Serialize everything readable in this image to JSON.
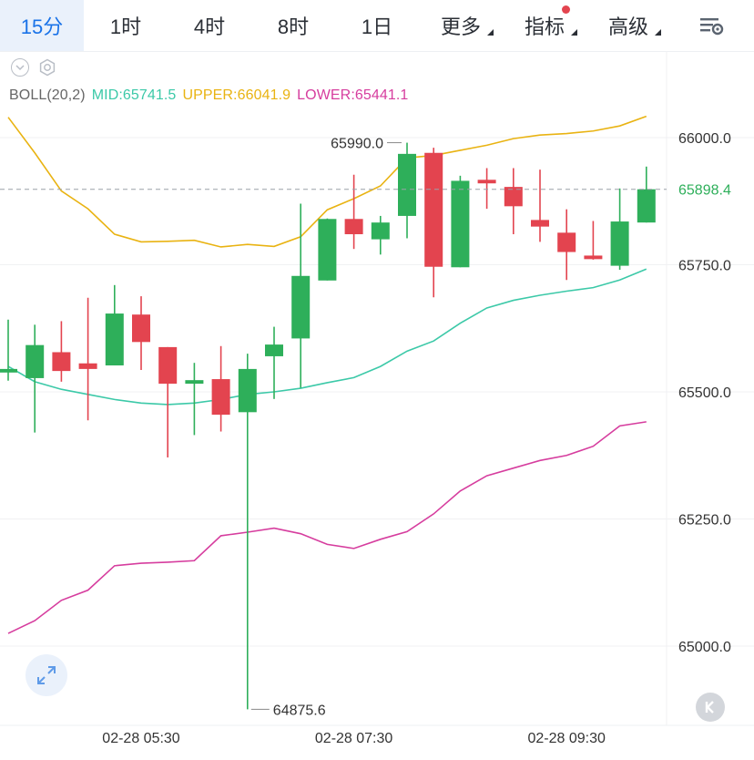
{
  "tabs": [
    {
      "label": "15分",
      "active": true
    },
    {
      "label": "1时"
    },
    {
      "label": "4时"
    },
    {
      "label": "8时"
    },
    {
      "label": "1日"
    },
    {
      "label": "更多",
      "dropdown": true
    },
    {
      "label": "指标",
      "dropdown": true,
      "dot": true
    },
    {
      "label": "高级",
      "dropdown": true
    }
  ],
  "indicator": {
    "name": "BOLL(20,2)",
    "mid": "MID:65741.5",
    "upper": "UPPER:66041.9",
    "lower": "LOWER:65441.1"
  },
  "colors": {
    "up": "#2eaf5a",
    "down": "#e3444f",
    "mid": "#3cc9a8",
    "upper": "#e9b312",
    "lower": "#d63d9e",
    "accent": "#1a73e8"
  },
  "icons": {
    "settings": "sliders-gear-icon",
    "collapse": "chevron-circle-icon",
    "config": "gear-icon",
    "expand": "expand-arrows-icon",
    "k": "k-logo-icon"
  },
  "chart_data": {
    "type": "candlestick",
    "y_ticks": [
      66000,
      65750,
      65500,
      65250,
      65000
    ],
    "y_tick_labels": [
      "66000.0",
      "65750.0",
      "65500.0",
      "65250.0",
      "65000.0"
    ],
    "ylim": [
      64835,
      66140
    ],
    "x_tick_labels": [
      "02-28 05:30",
      "02-28 07:30",
      "02-28 09:30"
    ],
    "x_tick_index": [
      5,
      13,
      21
    ],
    "last_price": 65898.4,
    "last_price_label": "65898.4",
    "max_label": "65990.0",
    "min_label": "64875.6",
    "candles": [
      {
        "o": 65538,
        "h": 65642,
        "l": 65522,
        "c": 65545
      },
      {
        "o": 65527,
        "h": 65632,
        "l": 65420,
        "c": 65592
      },
      {
        "o": 65578,
        "h": 65639,
        "l": 65520,
        "c": 65541
      },
      {
        "o": 65556,
        "h": 65685,
        "l": 65444,
        "c": 65545
      },
      {
        "o": 65552,
        "h": 65710,
        "l": 65552,
        "c": 65654
      },
      {
        "o": 65652,
        "h": 65688,
        "l": 65543,
        "c": 65598
      },
      {
        "o": 65588,
        "h": 65588,
        "l": 65371,
        "c": 65516
      },
      {
        "o": 65516,
        "h": 65557,
        "l": 65415,
        "c": 65523
      },
      {
        "o": 65525,
        "h": 65590,
        "l": 65422,
        "c": 65455
      },
      {
        "o": 65460,
        "h": 65575,
        "l": 64875.6,
        "c": 65545
      },
      {
        "o": 65570,
        "h": 65628,
        "l": 65486,
        "c": 65593
      },
      {
        "o": 65605,
        "h": 65870,
        "l": 65508,
        "c": 65728
      },
      {
        "o": 65719,
        "h": 65841,
        "l": 65719,
        "c": 65840
      },
      {
        "o": 65840,
        "h": 65927,
        "l": 65781,
        "c": 65810
      },
      {
        "o": 65800,
        "h": 65846,
        "l": 65770,
        "c": 65833
      },
      {
        "o": 65846,
        "h": 65990,
        "l": 65802,
        "c": 65968
      },
      {
        "o": 65970,
        "h": 65980,
        "l": 65686,
        "c": 65746
      },
      {
        "o": 65745,
        "h": 65925,
        "l": 65745,
        "c": 65915
      },
      {
        "o": 65917,
        "h": 65940,
        "l": 65860,
        "c": 65910
      },
      {
        "o": 65903,
        "h": 65940,
        "l": 65810,
        "c": 65865
      },
      {
        "o": 65838,
        "h": 65937,
        "l": 65795,
        "c": 65825
      },
      {
        "o": 65813,
        "h": 65859,
        "l": 65720,
        "c": 65775
      },
      {
        "o": 65768,
        "h": 65836,
        "l": 65760,
        "c": 65761
      },
      {
        "o": 65748,
        "h": 65900,
        "l": 65740,
        "c": 65835
      },
      {
        "o": 65833,
        "h": 65943,
        "l": 65833,
        "c": 65898.4
      }
    ],
    "series": [
      {
        "key": "upper",
        "values": [
          66040,
          65970,
          65895,
          65860,
          65810,
          65795,
          65796,
          65798,
          65785,
          65790,
          65786,
          65805,
          65858,
          65880,
          65905,
          65960,
          65965,
          65975,
          65985,
          65998,
          66005,
          66008,
          66013,
          66023,
          66041.9
        ]
      },
      {
        "key": "mid",
        "values": [
          65550,
          65520,
          65505,
          65495,
          65485,
          65478,
          65475,
          65478,
          65485,
          65495,
          65500,
          65507,
          65518,
          65528,
          65550,
          65580,
          65600,
          65635,
          65665,
          65680,
          65690,
          65698,
          65705,
          65720,
          65741.5
        ]
      },
      {
        "key": "lower",
        "values": [
          65025,
          65050,
          65090,
          65110,
          65158,
          65163,
          65165,
          65168,
          65217,
          65224,
          65232,
          65221,
          65200,
          65192,
          65210,
          65225,
          65260,
          65305,
          65335,
          65350,
          65365,
          65375,
          65393,
          65433,
          65441.1
        ]
      }
    ]
  }
}
